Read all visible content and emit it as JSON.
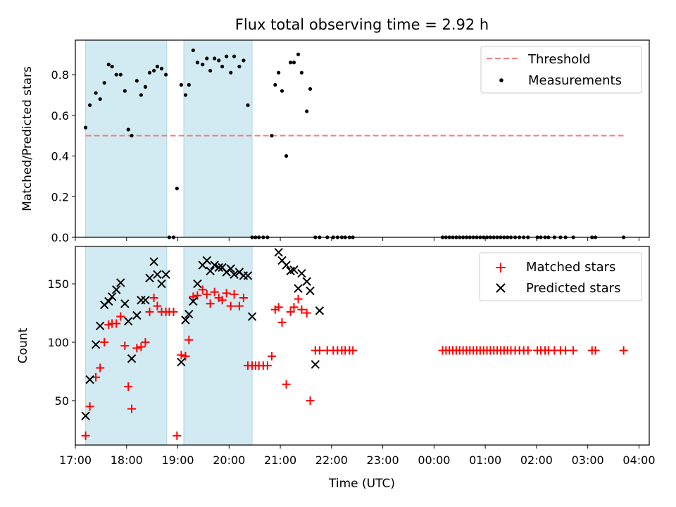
{
  "title": "Flux total observing time = 2.92 h",
  "xlabel": "Time (UTC)",
  "x_ticks": [
    "17:00",
    "18:00",
    "19:00",
    "20:00",
    "21:00",
    "22:00",
    "23:00",
    "00:00",
    "01:00",
    "02:00",
    "03:00",
    "04:00"
  ],
  "colors": {
    "measure": "#000000",
    "threshold": "#f28080",
    "matched": "#ff0000",
    "predicted": "#000000",
    "band": "#add8e6"
  },
  "chart_data": [
    {
      "type": "scatter",
      "ylabel": "Matched/Predicted stars",
      "ylim": [
        0,
        0.97
      ],
      "y_ticks": [
        "0.0",
        "0.2",
        "0.4",
        "0.6",
        "0.8"
      ],
      "legend_position": "top-right",
      "legend": {
        "threshold": "Threshold",
        "measurements": "Measurements"
      },
      "threshold": {
        "value": 0.5,
        "x_range": [
          "17:12",
          "03:42"
        ]
      },
      "observing_windows": [
        [
          "17:12",
          "18:47"
        ],
        [
          "19:07",
          "20:27"
        ]
      ],
      "x": [
        "17:12",
        "17:17",
        "17:24",
        "17:29",
        "17:34",
        "17:39",
        "17:43",
        "17:48",
        "17:53",
        "17:58",
        "18:02",
        "18:06",
        "18:12",
        "18:17",
        "18:22",
        "18:27",
        "18:32",
        "18:36",
        "18:41",
        "18:46",
        "18:50",
        "18:55",
        "18:59",
        "19:04",
        "19:09",
        "19:13",
        "19:18",
        "19:23",
        "19:29",
        "19:34",
        "19:38",
        "19:43",
        "19:48",
        "19:52",
        "19:57",
        "20:02",
        "20:06",
        "20:12",
        "20:17",
        "20:22",
        "20:27",
        "20:31",
        "20:35",
        "20:40",
        "20:45",
        "20:50",
        "20:54",
        "20:58",
        "21:02",
        "21:07",
        "21:12",
        "21:16",
        "21:21",
        "21:25",
        "21:31",
        "21:35",
        "21:41",
        "21:46",
        "21:55",
        "22:02",
        "22:07",
        "22:12",
        "22:16",
        "22:21",
        "22:25",
        "00:10",
        "00:14",
        "00:18",
        "00:22",
        "00:26",
        "00:30",
        "00:34",
        "00:38",
        "00:42",
        "00:46",
        "00:50",
        "00:54",
        "00:58",
        "01:02",
        "01:06",
        "01:10",
        "01:14",
        "01:18",
        "01:22",
        "01:26",
        "01:30",
        "01:35",
        "01:40",
        "01:45",
        "01:50",
        "02:01",
        "02:05",
        "02:10",
        "02:14",
        "02:21",
        "02:28",
        "02:34",
        "02:43",
        "03:05",
        "03:09",
        "03:42"
      ],
      "values": [
        0.54,
        0.65,
        0.71,
        0.68,
        0.76,
        0.85,
        0.84,
        0.8,
        0.8,
        0.72,
        0.53,
        0.5,
        0.77,
        0.7,
        0.74,
        0.81,
        0.82,
        0.84,
        0.83,
        0.8,
        0.0,
        0.0,
        0.24,
        0.75,
        0.7,
        0.75,
        0.92,
        0.86,
        0.85,
        0.88,
        0.82,
        0.88,
        0.87,
        0.84,
        0.89,
        0.81,
        0.89,
        0.84,
        0.87,
        0.65,
        0.0,
        0.0,
        0.0,
        0.0,
        0.0,
        0.5,
        0.75,
        0.81,
        0.72,
        0.4,
        0.86,
        0.86,
        0.9,
        0.81,
        0.62,
        0.73,
        0.0,
        0.0,
        0.0,
        0.0,
        0.0,
        0.0,
        0.0,
        0.0,
        0.0,
        0.0,
        0.0,
        0.0,
        0.0,
        0.0,
        0.0,
        0.0,
        0.0,
        0.0,
        0.0,
        0.0,
        0.0,
        0.0,
        0.0,
        0.0,
        0.0,
        0.0,
        0.0,
        0.0,
        0.0,
        0.0,
        0.0,
        0.0,
        0.0,
        0.0,
        0.0,
        0.0,
        0.0,
        0.0,
        0.0,
        0.0,
        0.0,
        0.0,
        0.0,
        0.0,
        0.0
      ]
    },
    {
      "type": "scatter",
      "ylabel": "Count",
      "ylim": [
        12,
        182
      ],
      "y_ticks": [
        "50",
        "100",
        "150"
      ],
      "legend_position": "top-right",
      "observing_windows": [
        [
          "17:12",
          "18:47"
        ],
        [
          "19:07",
          "20:27"
        ]
      ],
      "series": [
        {
          "name": "Matched stars",
          "marker": "plus",
          "x": [
            "17:12",
            "17:17",
            "17:24",
            "17:29",
            "17:34",
            "17:39",
            "17:43",
            "17:48",
            "17:53",
            "17:58",
            "18:02",
            "18:06",
            "18:12",
            "18:17",
            "18:22",
            "18:27",
            "18:32",
            "18:36",
            "18:41",
            "18:46",
            "18:50",
            "18:55",
            "18:59",
            "19:04",
            "19:09",
            "19:13",
            "19:18",
            "19:23",
            "19:29",
            "19:34",
            "19:38",
            "19:43",
            "19:48",
            "19:52",
            "19:57",
            "20:02",
            "20:06",
            "20:12",
            "20:17",
            "20:22",
            "20:27",
            "20:31",
            "20:35",
            "20:40",
            "20:45",
            "20:50",
            "20:54",
            "20:58",
            "21:02",
            "21:07",
            "21:12",
            "21:16",
            "21:21",
            "21:25",
            "21:31",
            "21:35",
            "21:41",
            "21:46",
            "21:55",
            "22:02",
            "22:07",
            "22:12",
            "22:16",
            "22:21",
            "22:25",
            "00:10",
            "00:14",
            "00:18",
            "00:22",
            "00:26",
            "00:30",
            "00:34",
            "00:38",
            "00:42",
            "00:46",
            "00:50",
            "00:54",
            "00:58",
            "01:02",
            "01:06",
            "01:10",
            "01:14",
            "01:18",
            "01:22",
            "01:26",
            "01:30",
            "01:35",
            "01:40",
            "01:45",
            "01:50",
            "02:01",
            "02:05",
            "02:10",
            "02:14",
            "02:21",
            "02:28",
            "02:34",
            "02:43",
            "03:05",
            "03:09",
            "03:42"
          ],
          "values": [
            20,
            45,
            70,
            78,
            100,
            115,
            116,
            116,
            122,
            97,
            62,
            43,
            95,
            96,
            100,
            126,
            138,
            131,
            126,
            126,
            126,
            126,
            20,
            89,
            88,
            102,
            139,
            140,
            145,
            141,
            133,
            143,
            138,
            136,
            142,
            131,
            141,
            131,
            138,
            80,
            80,
            80,
            80,
            80,
            80,
            88,
            128,
            130,
            117,
            64,
            126,
            130,
            137,
            128,
            125,
            50,
            93,
            93,
            93,
            93,
            93,
            93,
            93,
            93,
            93,
            93,
            93,
            93,
            93,
            93,
            93,
            93,
            93,
            93,
            93,
            93,
            93,
            93,
            93,
            93,
            93,
            93,
            93,
            93,
            93,
            93,
            93,
            93,
            93,
            93,
            93,
            93,
            93,
            93,
            93,
            93,
            93,
            93,
            93,
            93,
            93
          ]
        },
        {
          "name": "Predicted stars",
          "marker": "x",
          "x": [
            "17:12",
            "17:17",
            "17:24",
            "17:29",
            "17:34",
            "17:39",
            "17:43",
            "17:48",
            "17:53",
            "17:58",
            "18:02",
            "18:06",
            "18:12",
            "18:17",
            "18:22",
            "18:27",
            "18:32",
            "18:36",
            "18:41",
            "18:46",
            "19:04",
            "19:09",
            "19:13",
            "19:18",
            "19:23",
            "19:29",
            "19:34",
            "19:38",
            "19:43",
            "19:48",
            "19:52",
            "19:57",
            "20:02",
            "20:06",
            "20:12",
            "20:17",
            "20:22",
            "20:27",
            "20:58",
            "21:02",
            "21:07",
            "21:12",
            "21:16",
            "21:21",
            "21:25",
            "21:31",
            "21:35",
            "21:41",
            "21:46"
          ],
          "values": [
            37,
            68,
            98,
            114,
            132,
            135,
            139,
            145,
            151,
            133,
            118,
            86,
            123,
            136,
            136,
            155,
            169,
            158,
            150,
            158,
            83,
            119,
            124,
            135,
            150,
            166,
            170,
            161,
            166,
            164,
            164,
            160,
            163,
            158,
            160,
            157,
            157,
            122,
            177,
            170,
            166,
            161,
            162,
            146,
            159,
            152,
            144,
            81,
            127
          ]
        }
      ]
    }
  ]
}
